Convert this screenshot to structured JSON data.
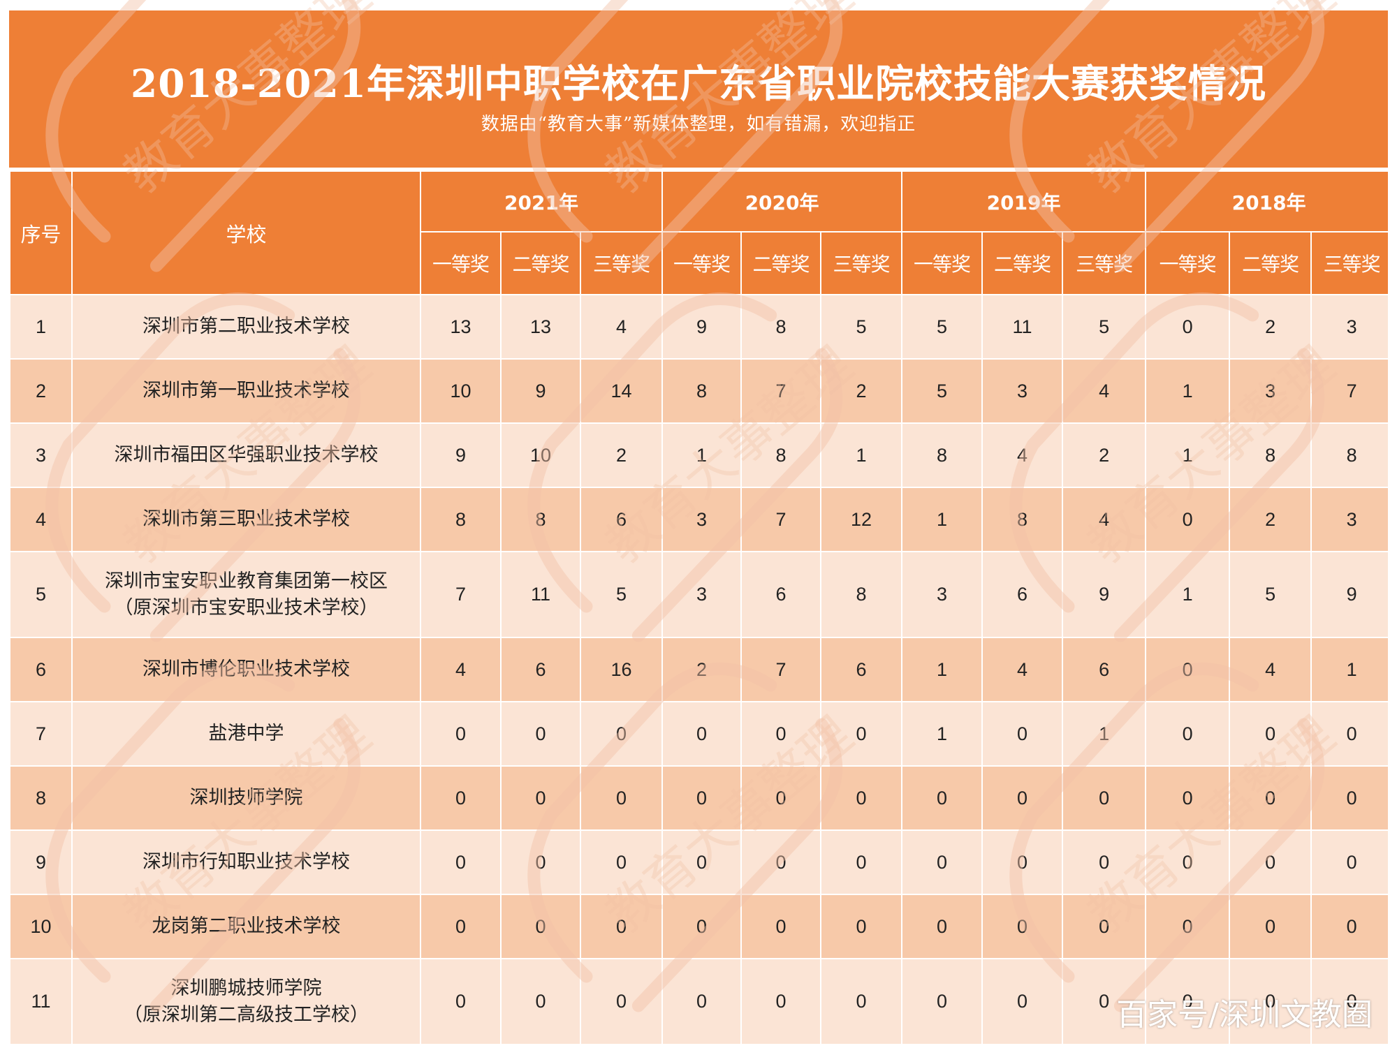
{
  "header": {
    "title": "2018-2021年深圳中职学校在广东省职业院校技能大赛获奖情况",
    "subtitle": "数据由“教育大事”新媒体整理，如有错漏，欢迎指正"
  },
  "table": {
    "col_seq": "序号",
    "col_school": "学校",
    "years": [
      "2021年",
      "2020年",
      "2019年",
      "2018年"
    ],
    "prizes": [
      "一等奖",
      "二等奖",
      "三等奖"
    ],
    "rows": [
      {
        "seq": "1",
        "school": [
          "深圳市第二职业技术学校"
        ],
        "values": [
          "13",
          "13",
          "4",
          "9",
          "8",
          "5",
          "5",
          "11",
          "5",
          "0",
          "2",
          "3"
        ]
      },
      {
        "seq": "2",
        "school": [
          "深圳市第一职业技术学校"
        ],
        "values": [
          "10",
          "9",
          "14",
          "8",
          "7",
          "2",
          "5",
          "3",
          "4",
          "1",
          "3",
          "7"
        ]
      },
      {
        "seq": "3",
        "school": [
          "深圳市福田区华强职业技术学校"
        ],
        "values": [
          "9",
          "10",
          "2",
          "1",
          "8",
          "1",
          "8",
          "4",
          "2",
          "1",
          "8",
          "8"
        ]
      },
      {
        "seq": "4",
        "school": [
          "深圳市第三职业技术学校"
        ],
        "values": [
          "8",
          "8",
          "6",
          "3",
          "7",
          "12",
          "1",
          "8",
          "4",
          "0",
          "2",
          "3"
        ]
      },
      {
        "seq": "5",
        "school": [
          "深圳市宝安职业教育集团第一校区",
          "（原深圳市宝安职业技术学校）"
        ],
        "values": [
          "7",
          "11",
          "5",
          "3",
          "6",
          "8",
          "3",
          "6",
          "9",
          "1",
          "5",
          "9"
        ]
      },
      {
        "seq": "6",
        "school": [
          "深圳市博伦职业技术学校"
        ],
        "values": [
          "4",
          "6",
          "16",
          "2",
          "7",
          "6",
          "1",
          "4",
          "6",
          "0",
          "4",
          "1"
        ]
      },
      {
        "seq": "7",
        "school": [
          "盐港中学"
        ],
        "values": [
          "0",
          "0",
          "0",
          "0",
          "0",
          "0",
          "1",
          "0",
          "1",
          "0",
          "0",
          "0"
        ]
      },
      {
        "seq": "8",
        "school": [
          "深圳技师学院"
        ],
        "values": [
          "0",
          "0",
          "0",
          "0",
          "0",
          "0",
          "0",
          "0",
          "0",
          "0",
          "0",
          "0"
        ]
      },
      {
        "seq": "9",
        "school": [
          "深圳市行知职业技术学校"
        ],
        "values": [
          "0",
          "0",
          "0",
          "0",
          "0",
          "0",
          "0",
          "0",
          "0",
          "0",
          "0",
          "0"
        ]
      },
      {
        "seq": "10",
        "school": [
          "龙岗第二职业技术学校"
        ],
        "values": [
          "0",
          "0",
          "0",
          "0",
          "0",
          "0",
          "0",
          "0",
          "0",
          "0",
          "0",
          "0"
        ]
      },
      {
        "seq": "11",
        "school": [
          "深圳鹏城技师学院",
          "（原深圳第二高级技工学校）"
        ],
        "values": [
          "0",
          "0",
          "0",
          "0",
          "0",
          "0",
          "0",
          "0",
          "0",
          "0",
          "0",
          "0"
        ]
      }
    ]
  },
  "watermark": {
    "text": "教育大事整理",
    "color": "#f2c2a6"
  },
  "source_mark": "百家号/深圳文教圈",
  "colors": {
    "header_orange": "#ee7f36",
    "row_light": "#fbe4d5",
    "row_dark": "#f7c9a9"
  }
}
